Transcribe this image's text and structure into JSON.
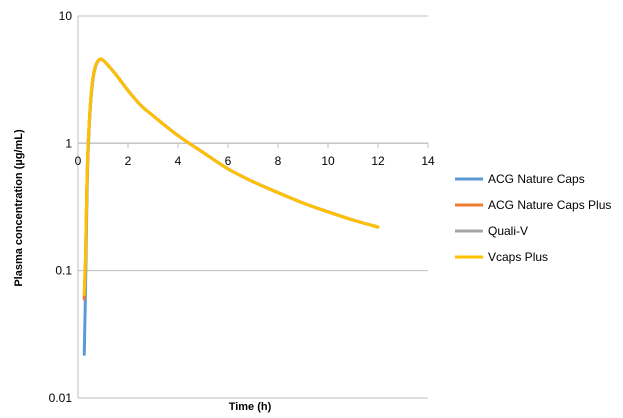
{
  "chart_data": {
    "type": "line",
    "xlabel": "Time (h)",
    "ylabel": "Plasma concentration (µg/mL)",
    "xlim": [
      0,
      14
    ],
    "ylim": [
      0.01,
      10
    ],
    "y_scale": "log",
    "x_ticks": [
      "0",
      "2",
      "4",
      "6",
      "8",
      "10",
      "12",
      "14"
    ],
    "y_ticks": [
      "0.01",
      "0.1",
      "1",
      "10"
    ],
    "grid": "horizontal",
    "legend_position": "right",
    "series": [
      {
        "name": "ACG Nature Caps",
        "color": "#5b9bd5",
        "x": [
          0.25,
          0.3,
          0.35,
          0.4,
          0.5,
          0.6,
          0.7,
          0.8,
          0.9,
          1.0,
          1.2,
          1.5,
          2,
          2.5,
          3,
          4,
          5,
          6,
          7,
          8,
          9,
          10,
          11,
          12
        ],
        "y": [
          0.022,
          0.07,
          0.3,
          0.8,
          2.0,
          3.2,
          4.0,
          4.4,
          4.6,
          4.5,
          4.1,
          3.5,
          2.6,
          2.0,
          1.65,
          1.15,
          0.85,
          0.63,
          0.5,
          0.41,
          0.34,
          0.29,
          0.25,
          0.22
        ]
      },
      {
        "name": "ACG Nature Caps Plus",
        "color": "#ed7d31",
        "x": [
          0.25,
          0.3,
          0.35,
          0.4,
          0.5,
          0.6,
          0.7,
          0.8,
          0.9,
          1.0,
          1.2,
          1.5,
          2,
          2.5,
          3,
          4,
          5,
          6,
          7,
          8,
          9,
          10,
          11,
          12
        ],
        "y": [
          0.06,
          0.12,
          0.4,
          0.9,
          2.1,
          3.3,
          4.05,
          4.45,
          4.6,
          4.5,
          4.1,
          3.5,
          2.6,
          2.0,
          1.65,
          1.15,
          0.85,
          0.63,
          0.5,
          0.41,
          0.34,
          0.29,
          0.25,
          0.22
        ]
      },
      {
        "name": "Quali-V",
        "color": "#a5a5a5",
        "x": [
          0.25,
          0.3,
          0.35,
          0.4,
          0.5,
          0.6,
          0.7,
          0.8,
          0.9,
          1.0,
          1.2,
          1.5,
          2,
          2.5,
          3,
          4,
          5,
          6,
          7,
          8,
          9,
          10,
          11,
          12
        ],
        "y": [
          0.065,
          0.13,
          0.42,
          0.92,
          2.1,
          3.3,
          4.05,
          4.45,
          4.6,
          4.5,
          4.1,
          3.5,
          2.6,
          2.0,
          1.65,
          1.15,
          0.85,
          0.63,
          0.5,
          0.41,
          0.34,
          0.29,
          0.25,
          0.22
        ]
      },
      {
        "name": "Vcaps Plus",
        "color": "#ffc000",
        "x": [
          0.25,
          0.3,
          0.35,
          0.4,
          0.5,
          0.6,
          0.7,
          0.8,
          0.9,
          1.0,
          1.2,
          1.5,
          2,
          2.5,
          3,
          4,
          5,
          6,
          7,
          8,
          9,
          10,
          11,
          12
        ],
        "y": [
          0.065,
          0.13,
          0.42,
          0.92,
          2.1,
          3.3,
          4.05,
          4.45,
          4.6,
          4.5,
          4.1,
          3.5,
          2.6,
          2.0,
          1.65,
          1.15,
          0.85,
          0.63,
          0.5,
          0.41,
          0.34,
          0.29,
          0.25,
          0.22
        ]
      }
    ]
  },
  "colors": {
    "gridline": "#bfbfbf",
    "axis": "#bfbfbf",
    "background": "#ffffff"
  }
}
